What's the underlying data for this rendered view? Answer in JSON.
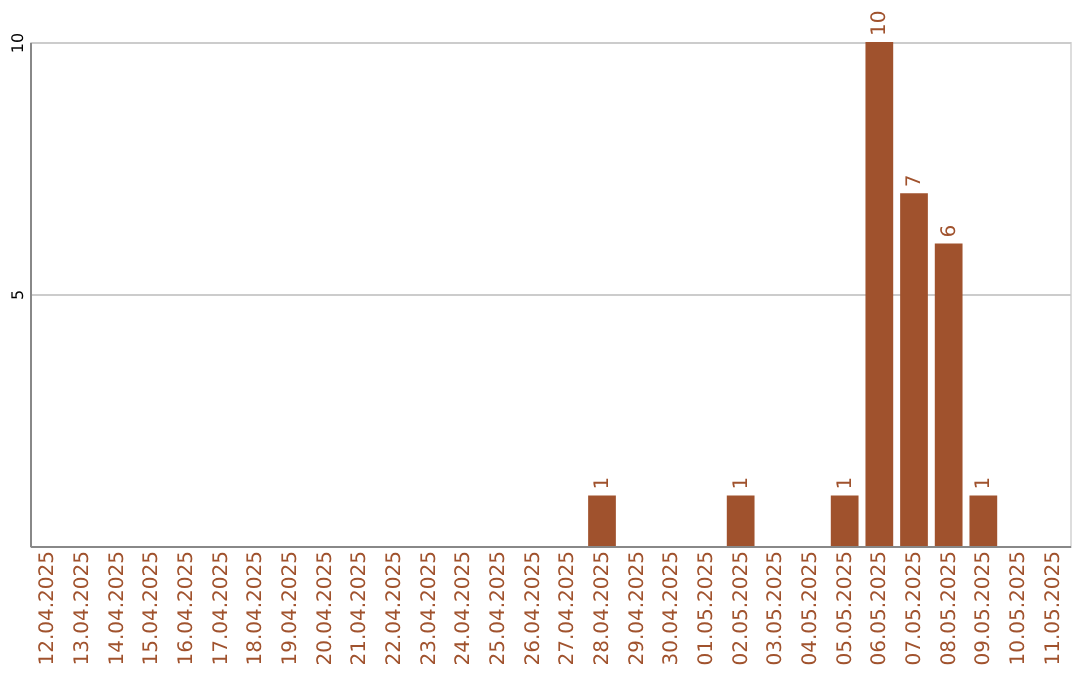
{
  "chart_data": {
    "type": "bar",
    "categories": [
      "12.04.2025",
      "13.04.2025",
      "14.04.2025",
      "15.04.2025",
      "16.04.2025",
      "17.04.2025",
      "18.04.2025",
      "19.04.2025",
      "20.04.2025",
      "21.04.2025",
      "22.04.2025",
      "23.04.2025",
      "24.04.2025",
      "25.04.2025",
      "26.04.2025",
      "27.04.2025",
      "28.04.2025",
      "29.04.2025",
      "30.04.2025",
      "01.05.2025",
      "02.05.2025",
      "03.05.2025",
      "04.05.2025",
      "05.05.2025",
      "06.05.2025",
      "07.05.2025",
      "08.05.2025",
      "09.05.2025",
      "10.05.2025",
      "11.05.2025"
    ],
    "values": [
      0,
      0,
      0,
      0,
      0,
      0,
      0,
      0,
      0,
      0,
      0,
      0,
      0,
      0,
      0,
      0,
      1,
      0,
      0,
      0,
      1,
      0,
      0,
      1,
      10,
      7,
      6,
      1,
      0,
      0
    ],
    "value_labels": [
      null,
      null,
      null,
      null,
      null,
      null,
      null,
      null,
      null,
      null,
      null,
      null,
      null,
      null,
      null,
      null,
      "1",
      null,
      null,
      null,
      "1",
      null,
      null,
      "1",
      "10",
      "7",
      "6",
      "1",
      null,
      null
    ],
    "color": "#a0522d",
    "ylim": [
      0,
      10
    ],
    "yticks": [
      5,
      10
    ],
    "grid": "y"
  }
}
